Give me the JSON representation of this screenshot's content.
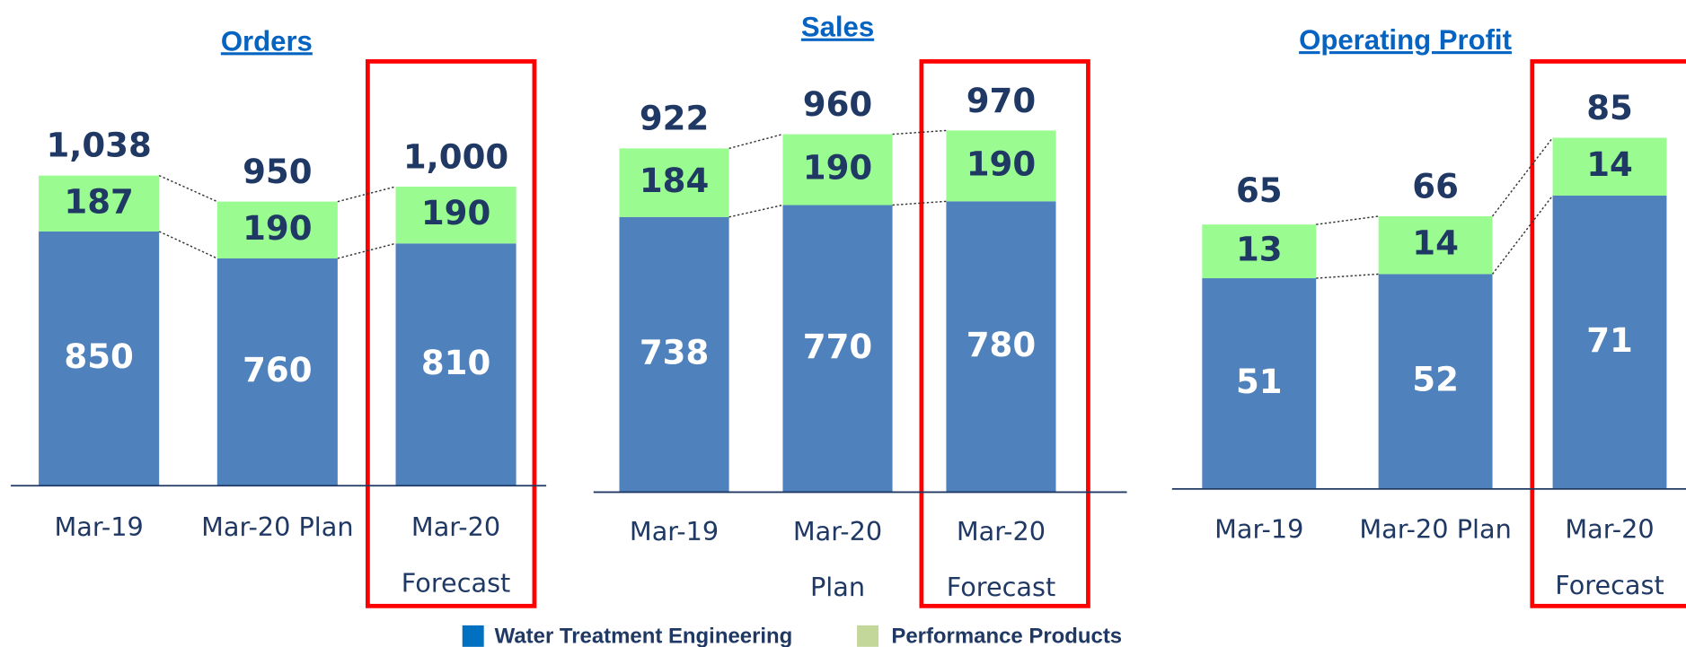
{
  "chart_data": [
    {
      "type": "bar",
      "title": "Orders",
      "categories": [
        [
          "Mar-19"
        ],
        [
          "Mar-20 Plan"
        ],
        [
          "Mar-20",
          "Forecast"
        ]
      ],
      "series": [
        {
          "name": "Water Treatment Engineering",
          "color": "#4f81bd",
          "legend_color": "#0070c0",
          "values": [
            850,
            760,
            810
          ]
        },
        {
          "name": "Performance Products",
          "color": "#99fb90",
          "legend_color": "#c4d79b",
          "values": [
            187,
            190,
            190
          ]
        }
      ],
      "totals": [
        1038,
        950,
        1000
      ],
      "total_labels": [
        "1,038",
        "950",
        "1,000"
      ]
    },
    {
      "type": "bar",
      "title": "Sales",
      "categories": [
        [
          "Mar-19"
        ],
        [
          "Mar-20",
          "Plan"
        ],
        [
          "Mar-20",
          "Forecast"
        ]
      ],
      "series": [
        {
          "name": "Water Treatment Engineering",
          "color": "#4f81bd",
          "values": [
            738,
            770,
            780
          ]
        },
        {
          "name": "Performance Products",
          "color": "#99fb90",
          "values": [
            184,
            190,
            190
          ]
        }
      ],
      "totals": [
        922,
        960,
        970
      ],
      "total_labels": [
        "922",
        "960",
        "970"
      ]
    },
    {
      "type": "bar",
      "title": "Operating Profit",
      "categories": [
        [
          "Mar-19"
        ],
        [
          "Mar-20 Plan"
        ],
        [
          "Mar-20",
          "Forecast"
        ]
      ],
      "series": [
        {
          "name": "Water Treatment Engineering",
          "color": "#4f81bd",
          "values": [
            51,
            52,
            71
          ]
        },
        {
          "name": "Performance Products",
          "color": "#99fb90",
          "values": [
            13,
            14,
            14
          ]
        }
      ],
      "totals": [
        65,
        66,
        85
      ],
      "total_labels": [
        "65",
        "66",
        "85"
      ]
    }
  ]
}
